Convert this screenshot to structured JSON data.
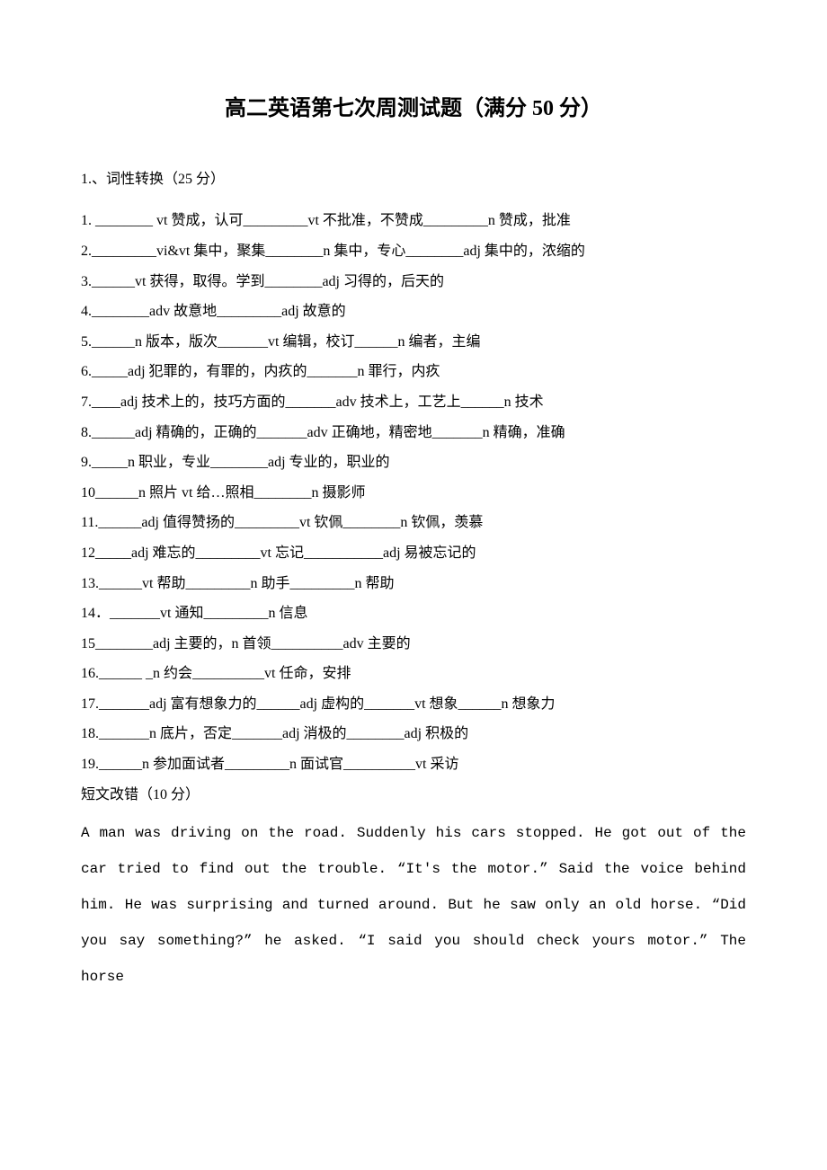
{
  "title": "高二英语第七次周测试题（满分 50 分）",
  "section1_header": "1.、词性转换（25 分）",
  "items": [
    "1. ________ vt 赞成，认可_________vt 不批准，不赞成_________n 赞成，批准",
    "2._________vi&vt 集中，聚集________n 集中，专心________adj 集中的，浓缩的",
    "3.______vt 获得，取得。学到________adj 习得的，后天的",
    "4.________adv 故意地_________adj 故意的",
    "5.______n 版本，版次_______vt 编辑，校订______n 编者，主编",
    "6._____adj 犯罪的，有罪的，内疚的_______n 罪行，内疚",
    "7.____adj 技术上的，技巧方面的_______adv 技术上，工艺上______n 技术",
    "8.______adj 精确的，正确的_______adv 正确地，精密地_______n 精确，准确",
    "9._____n 职业，专业________adj 专业的，职业的",
    "10______n 照片 vt 给…照相________n 摄影师",
    "11.______adj 值得赞扬的_________vt 钦佩________n 钦佩，羡慕",
    "12_____adj 难忘的_________vt 忘记___________adj 易被忘记的",
    "13.______vt 帮助_________n 助手_________n 帮助",
    "14．_______vt 通知_________n 信息",
    "15________adj 主要的，n 首领__________adv 主要的",
    "16.______ _n 约会__________vt 任命，安排",
    "17._______adj 富有想象力的______adj 虚构的_______vt 想象______n 想象力",
    "18._______n 底片，否定_______adj 消极的________adj 积极的",
    "19.______n 参加面试者_________n 面试官__________vt 采访"
  ],
  "subsection_header": "短文改错（10 分）",
  "paragraph": "A man was driving on the road. Suddenly his cars stopped. He got out of the car tried to find out the trouble. “It's the motor.” Said the voice behind him. He was surprising and turned around. But he saw only an old horse. “Did you say something?” he   asked. “I said you should check yours motor.” The horse"
}
